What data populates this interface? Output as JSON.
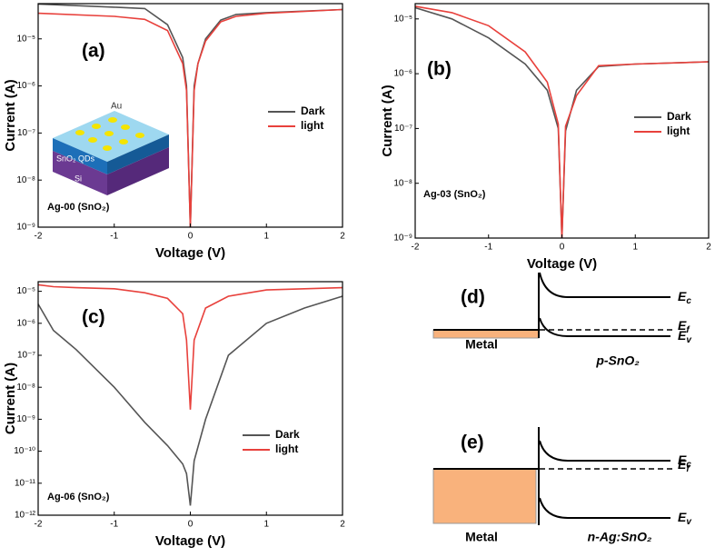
{
  "chart_data": [
    {
      "type": "line",
      "panel": "(a)",
      "annotation": "Ag-00 (SnO₂)",
      "xlabel": "Voltage (V)",
      "ylabel": "Current (A)",
      "inset": [
        "Au",
        "SnO₂ QDs",
        "Si"
      ],
      "x": [
        -2,
        -1,
        -0.6,
        -0.3,
        -0.1,
        -0.05,
        0,
        0.05,
        0.1,
        0.2,
        0.4,
        0.6,
        1,
        2
      ],
      "series": [
        {
          "name": "Dark",
          "color": "#555555",
          "values": [
            5.5e-05,
            4.7e-05,
            4.4e-05,
            2e-05,
            4e-06,
            1e-06,
            1e-09,
            1e-06,
            3e-06,
            1e-05,
            2.5e-05,
            3.3e-05,
            3.6e-05,
            4.2e-05
          ]
        },
        {
          "name": "light",
          "color": "#e8413c",
          "values": [
            3.5e-05,
            3e-05,
            2.6e-05,
            1.5e-05,
            3e-06,
            8e-07,
            1e-09,
            8e-07,
            3e-06,
            9e-06,
            2.3e-05,
            3e-05,
            3.5e-05,
            4.2e-05
          ]
        }
      ],
      "xlim": [
        -2,
        2
      ],
      "xticks": [
        -2,
        -1,
        0,
        1,
        2
      ],
      "ylim": [
        1e-09,
        5.6e-05
      ],
      "log_scale": true,
      "yticks": [
        {
          "value": 1e-09,
          "label": "10⁻⁹"
        },
        {
          "value": 1e-08,
          "label": "10⁻⁸"
        },
        {
          "value": 1e-07,
          "label": "10⁻⁷"
        },
        {
          "value": 1e-06,
          "label": "10⁻⁶"
        },
        {
          "value": 1e-05,
          "label": "10⁻⁵"
        }
      ],
      "legend": "center right"
    },
    {
      "type": "line",
      "panel": "(b)",
      "annotation": "Ag-03 (SnO₂)",
      "xlabel": "Voltage (V)",
      "ylabel": "Current (A)",
      "x": [
        -2,
        -1.5,
        -1,
        -0.5,
        -0.2,
        -0.05,
        0,
        0.05,
        0.2,
        0.5,
        1,
        2
      ],
      "series": [
        {
          "name": "Dark",
          "color": "#555555",
          "values": [
            1.6e-05,
            1e-05,
            4.5e-06,
            1.5e-06,
            5e-07,
            1e-07,
            1e-09,
            9e-08,
            5e-07,
            1.35e-06,
            1.5e-06,
            1.65e-06
          ]
        },
        {
          "name": "light",
          "color": "#e8413c",
          "values": [
            1.7e-05,
            1.3e-05,
            7.5e-06,
            2.5e-06,
            7e-07,
            1.2e-07,
            1e-09,
            1.1e-07,
            4e-07,
            1.4e-06,
            1.5e-06,
            1.65e-06
          ]
        }
      ],
      "xlim": [
        -2,
        2
      ],
      "xticks": [
        -2,
        -1,
        0,
        1,
        2
      ],
      "ylim": [
        1e-09,
        1.9e-05
      ],
      "log_scale": true,
      "yticks": [
        {
          "value": 1e-09,
          "label": "10⁻⁹"
        },
        {
          "value": 1e-08,
          "label": "10⁻⁸"
        },
        {
          "value": 1e-07,
          "label": "10⁻⁷"
        },
        {
          "value": 1e-06,
          "label": "10⁻⁶"
        },
        {
          "value": 1e-05,
          "label": "10⁻⁵"
        }
      ],
      "legend": "center right"
    },
    {
      "type": "line",
      "panel": "(c)",
      "annotation": "Ag-06 (SnO₂)",
      "xlabel": "Voltage (V)",
      "ylabel": "Current (A)",
      "x": [
        -2,
        -1.8,
        -1.5,
        -1,
        -0.6,
        -0.3,
        -0.1,
        -0.05,
        0,
        0.05,
        0.2,
        0.5,
        1,
        1.5,
        2
      ],
      "series": [
        {
          "name": "Dark",
          "color": "#555555",
          "values": [
            4e-06,
            6e-07,
            1.5e-07,
            1e-08,
            8e-10,
            1.5e-10,
            4e-11,
            2e-11,
            2e-12,
            5e-11,
            1e-09,
            1e-07,
            1e-06,
            3e-06,
            7e-06
          ]
        },
        {
          "name": "light",
          "color": "#e8413c",
          "values": [
            1.6e-05,
            1.4e-05,
            1.3e-05,
            1.2e-05,
            9e-06,
            6e-06,
            2e-06,
            3e-07,
            2e-09,
            3e-07,
            3e-06,
            7e-06,
            1.1e-05,
            1.2e-05,
            1.3e-05
          ]
        }
      ],
      "xlim": [
        -2,
        2
      ],
      "xticks": [
        -2,
        -1,
        0,
        1,
        2
      ],
      "ylim": [
        1e-12,
        2e-05
      ],
      "log_scale": true,
      "yticks": [
        {
          "value": 1e-12,
          "label": "10⁻¹²"
        },
        {
          "value": 1e-11,
          "label": "10⁻¹¹"
        },
        {
          "value": 1e-10,
          "label": "10⁻¹⁰"
        },
        {
          "value": 1e-09,
          "label": "10⁻⁹"
        },
        {
          "value": 1e-08,
          "label": "10⁻⁸"
        },
        {
          "value": 1e-07,
          "label": "10⁻⁷"
        },
        {
          "value": 1e-06,
          "label": "10⁻⁶"
        },
        {
          "value": 1e-05,
          "label": "10⁻⁵"
        }
      ],
      "legend": "lower right"
    }
  ],
  "diagrams": [
    {
      "label": "(d)",
      "metal": "Metal",
      "semiconductor": "p-SnO₂",
      "levels": [
        {
          "symbol": "E",
          "sub": "c"
        },
        {
          "symbol": "E",
          "sub": "f"
        },
        {
          "symbol": "E",
          "sub": "v"
        }
      ]
    },
    {
      "label": "(e)",
      "metal": "Metal",
      "semiconductor": "n-Ag:SnO₂",
      "levels": [
        {
          "symbol": "E",
          "sub": "c"
        },
        {
          "symbol": "E",
          "sub": "f"
        },
        {
          "symbol": "E",
          "sub": "v"
        }
      ]
    }
  ]
}
